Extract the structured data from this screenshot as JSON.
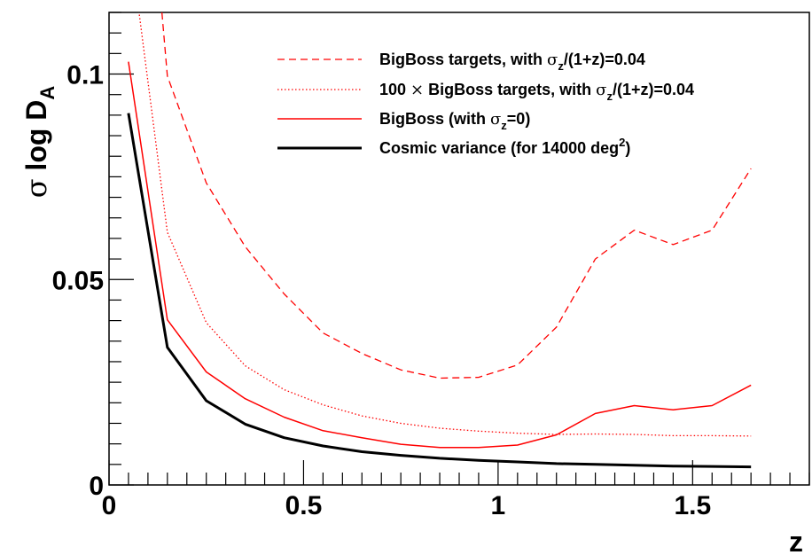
{
  "chart_data": {
    "type": "line",
    "title": "",
    "xlabel": "z",
    "ylabel": {
      "sigma": "σ",
      "main": " log D",
      "sub": "A"
    },
    "xlim": [
      0,
      1.8
    ],
    "ylim": [
      0,
      0.115
    ],
    "x_ticks": [
      {
        "value": 0,
        "label": "0"
      },
      {
        "value": 0.5,
        "label": "0.5"
      },
      {
        "value": 1,
        "label": "1"
      },
      {
        "value": 1.5,
        "label": "1.5"
      }
    ],
    "y_ticks": [
      {
        "value": 0,
        "label": "0"
      },
      {
        "value": 0.05,
        "label": "0.05"
      },
      {
        "value": 0.1,
        "label": "0.1"
      }
    ],
    "legend_position": "top-right",
    "series": [
      {
        "key": "bigboss_targets",
        "color": "#ff0000",
        "style": "dashed",
        "legend": [
          {
            "t": "BigBoss targets, with "
          },
          {
            "t": "σ",
            "sym": true
          },
          {
            "t": "z",
            "sub": true
          },
          {
            "t": "/(1+z)=0.04"
          }
        ],
        "x": [
          0.05,
          0.15,
          0.25,
          0.35,
          0.45,
          0.55,
          0.65,
          0.75,
          0.85,
          0.95,
          1.05,
          1.15,
          1.25,
          1.35,
          1.45,
          1.55,
          1.65
        ],
        "y": [
          0.21,
          0.0995,
          0.0735,
          0.058,
          0.0465,
          0.037,
          0.032,
          0.028,
          0.026,
          0.0262,
          0.0292,
          0.0384,
          0.055,
          0.062,
          0.0585,
          0.062,
          0.077
        ]
      },
      {
        "key": "bigboss_targets_100x",
        "color": "#ff0000",
        "style": "dotted",
        "legend": [
          {
            "t": "100 "
          },
          {
            "t": "×",
            "sym": true
          },
          {
            "t": " BigBoss targets, with "
          },
          {
            "t": "σ",
            "sym": true
          },
          {
            "t": "z",
            "sub": true
          },
          {
            "t": "/(1+z)=0.04"
          }
        ],
        "x": [
          0.05,
          0.15,
          0.25,
          0.35,
          0.45,
          0.55,
          0.65,
          0.75,
          0.85,
          0.95,
          1.05,
          1.15,
          1.25,
          1.35,
          1.45,
          1.55,
          1.65
        ],
        "y": [
          0.135,
          0.0615,
          0.0395,
          0.029,
          0.0232,
          0.0195,
          0.0168,
          0.015,
          0.0138,
          0.0131,
          0.0126,
          0.0123,
          0.0124,
          0.0123,
          0.012,
          0.012,
          0.0119
        ]
      },
      {
        "key": "bigboss",
        "color": "#ff0000",
        "style": "solid",
        "legend": [
          {
            "t": "BigBoss (with "
          },
          {
            "t": "σ",
            "sym": true
          },
          {
            "t": "z",
            "sub": true
          },
          {
            "t": "=0)"
          }
        ],
        "x": [
          0.05,
          0.15,
          0.25,
          0.35,
          0.45,
          0.55,
          0.65,
          0.75,
          0.85,
          0.95,
          1.05,
          1.15,
          1.25,
          1.35,
          1.45,
          1.55,
          1.65
        ],
        "y": [
          0.103,
          0.0402,
          0.0275,
          0.021,
          0.0165,
          0.0132,
          0.0115,
          0.0099,
          0.0091,
          0.0091,
          0.0097,
          0.0122,
          0.0174,
          0.0193,
          0.0183,
          0.0193,
          0.0243
        ]
      },
      {
        "key": "cosmic_variance",
        "color": "#000000",
        "style": "solid-thick",
        "legend": [
          {
            "t": "Cosmic variance (for 14000 deg"
          },
          {
            "t": "2",
            "sup": true
          },
          {
            "t": ")"
          }
        ],
        "x": [
          0.05,
          0.15,
          0.25,
          0.35,
          0.45,
          0.55,
          0.65,
          0.75,
          0.85,
          0.95,
          1.05,
          1.15,
          1.25,
          1.35,
          1.45,
          1.55,
          1.65
        ],
        "y": [
          0.0905,
          0.0335,
          0.0205,
          0.0148,
          0.0115,
          0.0095,
          0.0081,
          0.0072,
          0.0065,
          0.006,
          0.0056,
          0.0052,
          0.005,
          0.0048,
          0.0046,
          0.0045,
          0.0044
        ]
      }
    ]
  }
}
